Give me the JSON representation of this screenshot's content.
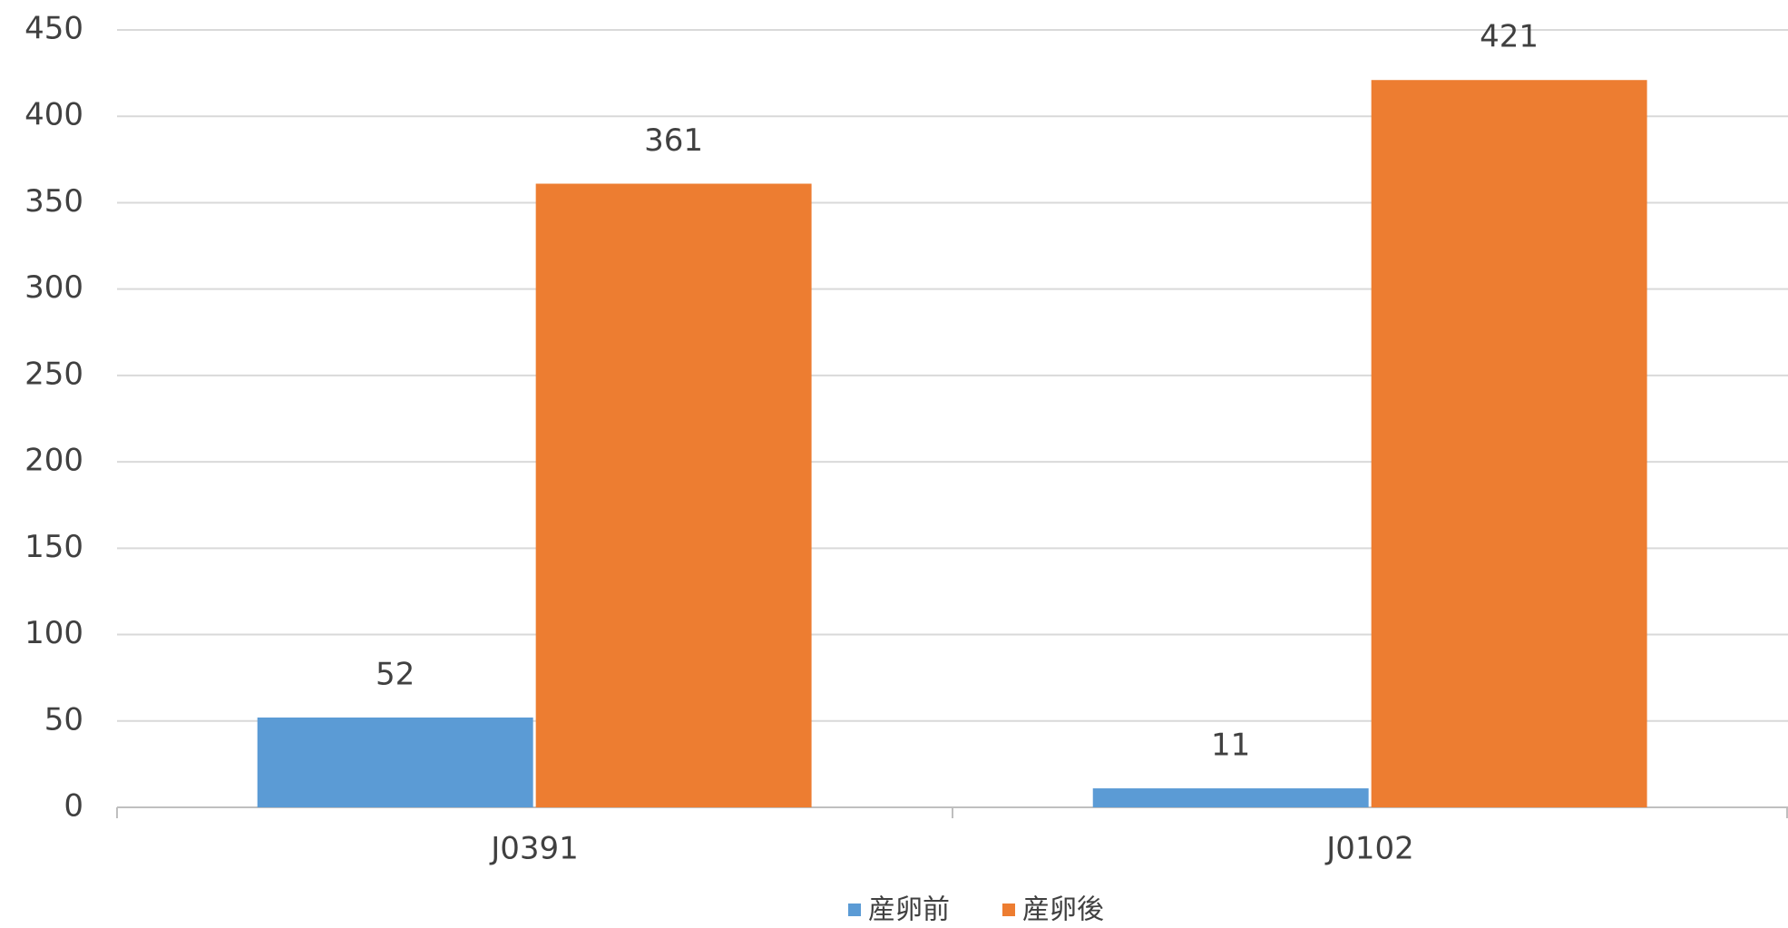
{
  "chart_data": {
    "type": "bar",
    "categories": [
      "J0391",
      "J0102"
    ],
    "series": [
      {
        "name": "産卵前",
        "color": "#5b9bd5",
        "values": [
          52,
          11
        ]
      },
      {
        "name": "産卵後",
        "color": "#ed7d31",
        "values": [
          361,
          421
        ]
      }
    ],
    "ylim": [
      0,
      450
    ],
    "yticks": [
      0,
      50,
      100,
      150,
      200,
      250,
      300,
      350,
      400,
      450
    ],
    "grid": true,
    "legend": "bottom"
  }
}
